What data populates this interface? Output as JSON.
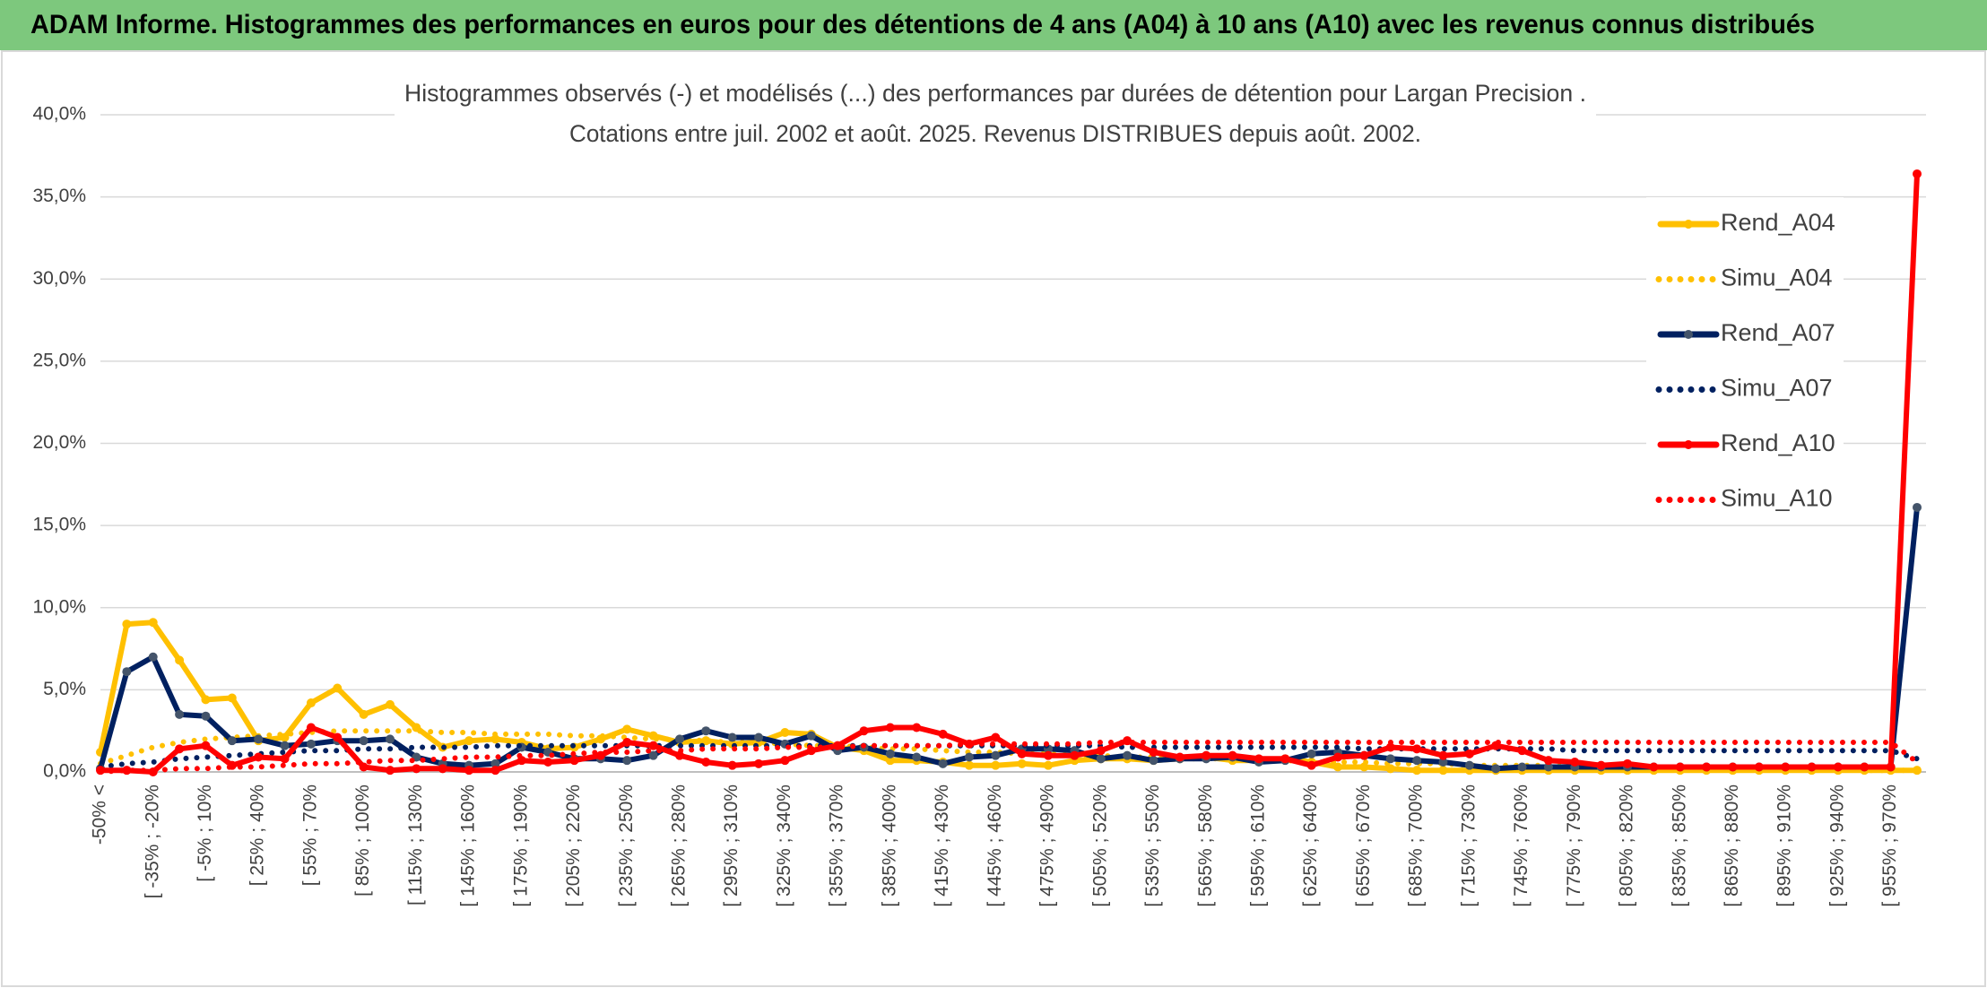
{
  "header": {
    "title": "ADAM Informe. Histogrammes des performances en euros pour des détentions de 4 ans (A04) à 10 ans (A10) avec les revenus connus distribués"
  },
  "chart_data": {
    "type": "line",
    "title": "Histogrammes observés (-) et modélisés (...) des performances par durées de détention pour Largan Precision .",
    "subtitle": "Cotations entre juil. 2002 et août. 2025. Revenus DISTRIBUES depuis août. 2002.",
    "categories": [
      "-50% <",
      null,
      "[ -35% ; -20%",
      null,
      "[ -5% ; 10%",
      null,
      "[ 25% ; 40%",
      null,
      "[ 55% ; 70%",
      null,
      "[ 85% ; 100%",
      null,
      "[ 115% ; 130%",
      null,
      "[ 145% ; 160%",
      null,
      "[ 175% ; 190%",
      null,
      "[ 205% ; 220%",
      null,
      "[ 235% ; 250%",
      null,
      "[ 265% ; 280%",
      null,
      "[ 295% ; 310%",
      null,
      "[ 325% ; 340%",
      null,
      "[ 355% ; 370%",
      null,
      "[ 385% ; 400%",
      null,
      "[ 415% ; 430%",
      null,
      "[ 445% ; 460%",
      null,
      "[ 475% ; 490%",
      null,
      "[ 505% ; 520%",
      null,
      "[ 535% ; 550%",
      null,
      "[ 565% ; 580%",
      null,
      "[ 595% ; 610%",
      null,
      "[ 625% ; 640%",
      null,
      "[ 655% ; 670%",
      null,
      "[ 685% ; 700%",
      null,
      "[ 715% ; 730%",
      null,
      "[ 745% ; 760%",
      null,
      "[ 775% ; 790%",
      null,
      "[ 805% ; 820%",
      null,
      "[ 835% ; 850%",
      null,
      "[ 865% ; 880%",
      null,
      "[ 895% ; 910%",
      null,
      "[ 925% ; 940%",
      null,
      "[ 955% ; 970%",
      null
    ],
    "ylim": [
      0,
      40
    ],
    "yticks": [
      {
        "value": 0,
        "label": "0,0%"
      },
      {
        "value": 5,
        "label": "5,0%"
      },
      {
        "value": 10,
        "label": "10,0%"
      },
      {
        "value": 15,
        "label": "15,0%"
      },
      {
        "value": 20,
        "label": "20,0%"
      },
      {
        "value": 25,
        "label": "25,0%"
      },
      {
        "value": 30,
        "label": "30,0%"
      },
      {
        "value": 35,
        "label": "35,0%"
      },
      {
        "value": 40,
        "label": "40,0%"
      }
    ],
    "grid": true,
    "legend": "right",
    "series": [
      {
        "name": "Rend_A04",
        "color": "#ffc000",
        "style": "solid",
        "markers": true,
        "values": [
          1.2,
          9.0,
          9.1,
          6.8,
          4.4,
          4.5,
          1.9,
          2.1,
          4.2,
          5.1,
          3.5,
          4.1,
          2.7,
          1.5,
          1.9,
          2.0,
          1.8,
          1.4,
          1.5,
          2.0,
          2.6,
          2.2,
          1.8,
          1.9,
          1.7,
          1.8,
          2.4,
          2.3,
          1.5,
          1.3,
          0.7,
          0.7,
          0.6,
          0.4,
          0.4,
          0.5,
          0.4,
          0.7,
          0.8,
          0.8,
          0.7,
          0.8,
          0.9,
          0.7,
          0.7,
          0.8,
          0.6,
          0.3,
          0.3,
          0.2,
          0.1,
          0.1,
          0.1,
          0.1,
          0.1,
          0.1,
          0.1,
          0.1,
          0.1,
          0.1,
          0.1,
          0.1,
          0.1,
          0.1,
          0.1,
          0.1,
          0.1,
          0.1,
          0.1,
          0.1
        ]
      },
      {
        "name": "Simu_A04",
        "color": "#ffc000",
        "style": "dotted",
        "markers": false,
        "values": [
          0.5,
          1.0,
          1.5,
          1.8,
          2.0,
          2.1,
          2.2,
          2.3,
          2.4,
          2.5,
          2.5,
          2.5,
          2.5,
          2.4,
          2.4,
          2.3,
          2.3,
          2.3,
          2.2,
          2.2,
          2.1,
          2.0,
          2.0,
          1.9,
          1.8,
          1.8,
          1.7,
          1.6,
          1.6,
          1.5,
          1.4,
          1.4,
          1.3,
          1.2,
          1.2,
          1.1,
          1.1,
          1.0,
          1.0,
          0.9,
          0.9,
          0.8,
          0.8,
          0.8,
          0.7,
          0.7,
          0.6,
          0.6,
          0.6,
          0.5,
          0.5,
          0.5,
          0.4,
          0.4,
          0.4,
          0.4,
          0.3,
          0.3,
          0.3,
          0.3,
          0.3,
          0.2,
          0.2,
          0.2,
          0.2,
          0.2,
          0.2,
          0.1,
          0.1,
          0.1
        ]
      },
      {
        "name": "Rend_A07",
        "color": "#002060",
        "marker_color": "#44546a",
        "style": "solid",
        "markers": true,
        "values": [
          0.2,
          6.1,
          7.0,
          3.5,
          3.4,
          1.9,
          2.0,
          1.6,
          1.7,
          1.9,
          1.9,
          2.0,
          0.9,
          0.5,
          0.4,
          0.5,
          1.5,
          1.2,
          0.8,
          0.8,
          0.7,
          1.0,
          2.0,
          2.5,
          2.1,
          2.1,
          1.7,
          2.2,
          1.3,
          1.5,
          1.1,
          0.9,
          0.5,
          0.9,
          1.0,
          1.4,
          1.4,
          1.3,
          0.8,
          1.0,
          0.7,
          0.8,
          0.8,
          0.9,
          0.6,
          0.7,
          1.1,
          1.2,
          1.0,
          0.8,
          0.7,
          0.6,
          0.4,
          0.2,
          0.3,
          0.3,
          0.3,
          0.3,
          0.3,
          0.3,
          0.3,
          0.3,
          0.3,
          0.3,
          0.3,
          0.3,
          0.3,
          0.3,
          0.3,
          16.1
        ]
      },
      {
        "name": "Simu_A07",
        "color": "#002060",
        "style": "dotted",
        "markers": false,
        "values": [
          0.3,
          0.5,
          0.6,
          0.8,
          0.9,
          1.0,
          1.1,
          1.2,
          1.3,
          1.3,
          1.4,
          1.4,
          1.5,
          1.5,
          1.5,
          1.6,
          1.6,
          1.6,
          1.6,
          1.6,
          1.6,
          1.6,
          1.6,
          1.6,
          1.6,
          1.6,
          1.6,
          1.6,
          1.6,
          1.6,
          1.6,
          1.6,
          1.6,
          1.6,
          1.6,
          1.6,
          1.6,
          1.6,
          1.6,
          1.5,
          1.5,
          1.5,
          1.5,
          1.5,
          1.5,
          1.5,
          1.5,
          1.5,
          1.4,
          1.4,
          1.4,
          1.4,
          1.4,
          1.4,
          1.4,
          1.4,
          1.3,
          1.3,
          1.3,
          1.3,
          1.3,
          1.3,
          1.3,
          1.3,
          1.3,
          1.3,
          1.3,
          1.3,
          1.3,
          0.8
        ]
      },
      {
        "name": "Rend_A10",
        "color": "#ff0000",
        "style": "solid",
        "markers": true,
        "values": [
          0.1,
          0.1,
          0.0,
          1.4,
          1.6,
          0.4,
          0.9,
          0.8,
          2.7,
          2.1,
          0.3,
          0.1,
          0.2,
          0.2,
          0.1,
          0.1,
          0.7,
          0.6,
          0.7,
          1.0,
          1.8,
          1.6,
          1.0,
          0.6,
          0.4,
          0.5,
          0.7,
          1.3,
          1.6,
          2.5,
          2.7,
          2.7,
          2.3,
          1.7,
          2.1,
          1.1,
          1.0,
          1.0,
          1.3,
          1.9,
          1.2,
          0.9,
          1.0,
          1.0,
          0.8,
          0.8,
          0.4,
          0.9,
          1.0,
          1.5,
          1.4,
          1.0,
          1.1,
          1.6,
          1.3,
          0.7,
          0.6,
          0.4,
          0.5,
          0.3,
          0.3,
          0.3,
          0.3,
          0.3,
          0.3,
          0.3,
          0.3,
          0.3,
          0.3,
          36.4
        ]
      },
      {
        "name": "Simu_A10",
        "color": "#ff0000",
        "style": "dotted",
        "markers": false,
        "values": [
          0.0,
          0.1,
          0.1,
          0.2,
          0.2,
          0.3,
          0.3,
          0.4,
          0.5,
          0.5,
          0.6,
          0.7,
          0.7,
          0.8,
          0.9,
          0.9,
          1.0,
          1.0,
          1.1,
          1.2,
          1.2,
          1.3,
          1.3,
          1.4,
          1.4,
          1.4,
          1.5,
          1.5,
          1.5,
          1.6,
          1.6,
          1.6,
          1.6,
          1.7,
          1.7,
          1.7,
          1.7,
          1.7,
          1.8,
          1.8,
          1.8,
          1.8,
          1.8,
          1.8,
          1.8,
          1.8,
          1.8,
          1.8,
          1.8,
          1.8,
          1.8,
          1.8,
          1.8,
          1.8,
          1.8,
          1.8,
          1.8,
          1.8,
          1.8,
          1.8,
          1.8,
          1.8,
          1.8,
          1.8,
          1.8,
          1.8,
          1.8,
          1.8,
          1.8,
          0.6
        ]
      }
    ]
  }
}
